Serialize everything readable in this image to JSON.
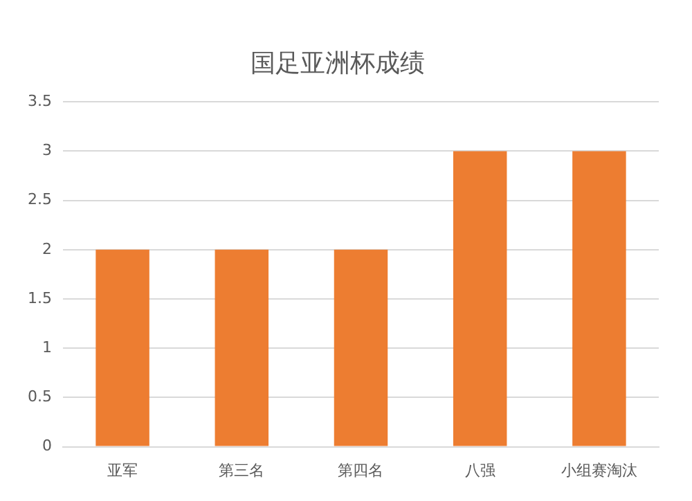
{
  "chart_data": {
    "type": "bar",
    "title": "国足亚洲杯成绩",
    "categories": [
      "亚军",
      "第三名",
      "第四名",
      "八强",
      "小组赛淘汰"
    ],
    "values": [
      2,
      2,
      2,
      3,
      3
    ],
    "color": "#ed7d31",
    "ylim": [
      0,
      3.5
    ],
    "yticks": [
      0,
      0.5,
      1,
      1.5,
      2,
      2.5,
      3,
      3.5
    ],
    "grid": "y",
    "legend": false
  }
}
